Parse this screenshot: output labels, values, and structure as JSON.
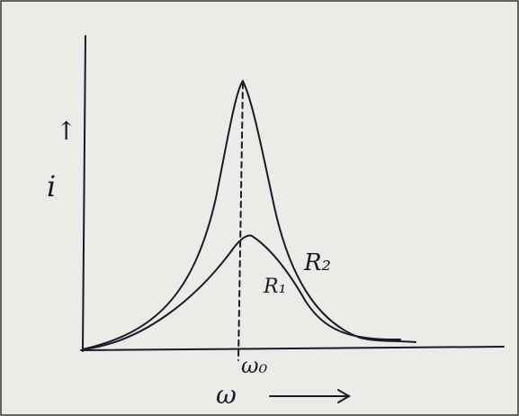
{
  "diagram": {
    "y_axis_arrow": "↑",
    "y_axis_label": "i",
    "x_axis_label": "ω",
    "peak_label": "ω₀",
    "curves": [
      {
        "label": "R₂"
      },
      {
        "label": "R₁"
      }
    ]
  }
}
